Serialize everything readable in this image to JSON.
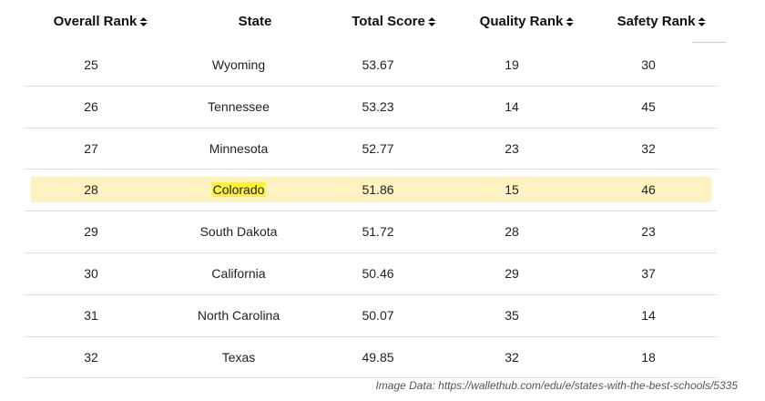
{
  "table": {
    "columns": [
      "Overall Rank",
      "State",
      "Total Score",
      "Quality Rank",
      "Safety Rank"
    ],
    "rows": [
      [
        25,
        "Wyoming",
        53.67,
        19,
        30
      ],
      [
        26,
        "Tennessee",
        53.23,
        14,
        45
      ],
      [
        27,
        "Minnesota",
        52.77,
        23,
        32
      ],
      [
        28,
        "Colorado",
        51.86,
        15,
        46
      ],
      [
        29,
        "South Dakota",
        51.72,
        28,
        23
      ],
      [
        30,
        "California",
        50.46,
        29,
        37
      ],
      [
        31,
        "North Carolina",
        50.07,
        35,
        14
      ],
      [
        32,
        "Texas",
        49.85,
        32,
        18
      ]
    ],
    "highlight_row": 3
  },
  "caption": "Image Data: https://wallethub.com/edu/e/states-with-the-best-schools/5335"
}
